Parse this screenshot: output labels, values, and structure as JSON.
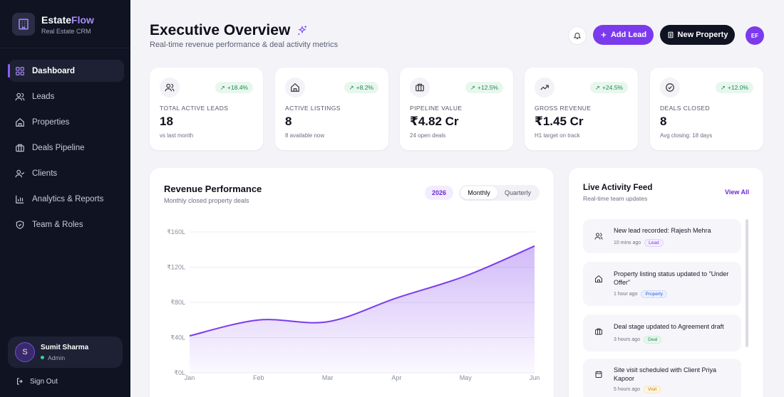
{
  "brand": {
    "name_main": "Estate",
    "name_accent": "Flow",
    "subtitle": "Real Estate CRM"
  },
  "sidebar": {
    "items": [
      {
        "label": "Dashboard",
        "icon": "grid-icon",
        "active": true
      },
      {
        "label": "Leads",
        "icon": "users-icon"
      },
      {
        "label": "Properties",
        "icon": "home-icon"
      },
      {
        "label": "Deals Pipeline",
        "icon": "briefcase-icon"
      },
      {
        "label": "Clients",
        "icon": "user-check-icon"
      },
      {
        "label": "Analytics & Reports",
        "icon": "bar-chart-icon"
      },
      {
        "label": "Team & Roles",
        "icon": "shield-icon"
      }
    ],
    "user": {
      "initial": "S",
      "name": "Sumit Sharma",
      "role": "Admin"
    },
    "signout": "Sign Out"
  },
  "header": {
    "title": "Executive Overview",
    "subtitle": "Real-time revenue performance & deal activity metrics",
    "add_lead": "Add Lead",
    "new_property": "New Property",
    "avatar": "EF"
  },
  "stats": [
    {
      "label": "TOTAL ACTIVE LEADS",
      "value": "18",
      "note": "vs last month",
      "change": "+18.4%",
      "icon": "users-icon"
    },
    {
      "label": "ACTIVE LISTINGS",
      "value": "8",
      "note": "8 available now",
      "change": "+8.2%",
      "icon": "home-icon"
    },
    {
      "label": "PIPELINE VALUE",
      "value": "₹4.82 Cr",
      "note": "24 open deals",
      "change": "+12.5%",
      "icon": "briefcase-icon"
    },
    {
      "label": "GROSS REVENUE",
      "value": "₹1.45 Cr",
      "note": "H1 target on track",
      "change": "+24.5%",
      "icon": "trending-up-icon"
    },
    {
      "label": "DEALS CLOSED",
      "value": "8",
      "note": "Avg closing: 18 days",
      "change": "+12.0%",
      "icon": "check-circle-icon"
    }
  ],
  "revenue": {
    "title": "Revenue Performance",
    "subtitle": "Monthly closed property deals",
    "year": "2026",
    "toggle": {
      "monthly": "Monthly",
      "quarterly": "Quarterly",
      "selected": "Monthly"
    }
  },
  "chart_data": {
    "type": "area",
    "x": [
      "Jan",
      "Feb",
      "Mar",
      "Apr",
      "May",
      "Jun"
    ],
    "series": [
      {
        "values": [
          42,
          60,
          58,
          85,
          110,
          144
        ]
      }
    ],
    "ylim": [
      0,
      160
    ],
    "yticks": [
      0,
      40,
      80,
      120,
      160
    ],
    "ytick_labels": [
      "₹0L",
      "₹40L",
      "₹80L",
      "₹120L",
      "₹160L"
    ],
    "line_color": "#7c3aed",
    "grid": true
  },
  "activity": {
    "title": "Live Activity Feed",
    "subtitle": "Real-time team updates",
    "view_all": "View All",
    "items": [
      {
        "text": "New lead recorded: Rajesh Mehra",
        "time": "10 mins ago",
        "tag": "Lead",
        "icon": "users-icon"
      },
      {
        "text": "Property listing status updated to \"Under Offer\"",
        "time": "1 hour ago",
        "tag": "Property",
        "icon": "home-icon"
      },
      {
        "text": "Deal stage updated to Agreement draft",
        "time": "3 hours ago",
        "tag": "Deal",
        "icon": "briefcase-icon"
      },
      {
        "text": "Site visit scheduled with Client Priya Kapoor",
        "time": "5 hours ago",
        "tag": "Visit",
        "icon": "calendar-icon"
      }
    ]
  },
  "colors": {
    "accent": "#7c3aed",
    "sidebar_bg": "#0f1322",
    "positive": "#1f8a4c"
  }
}
